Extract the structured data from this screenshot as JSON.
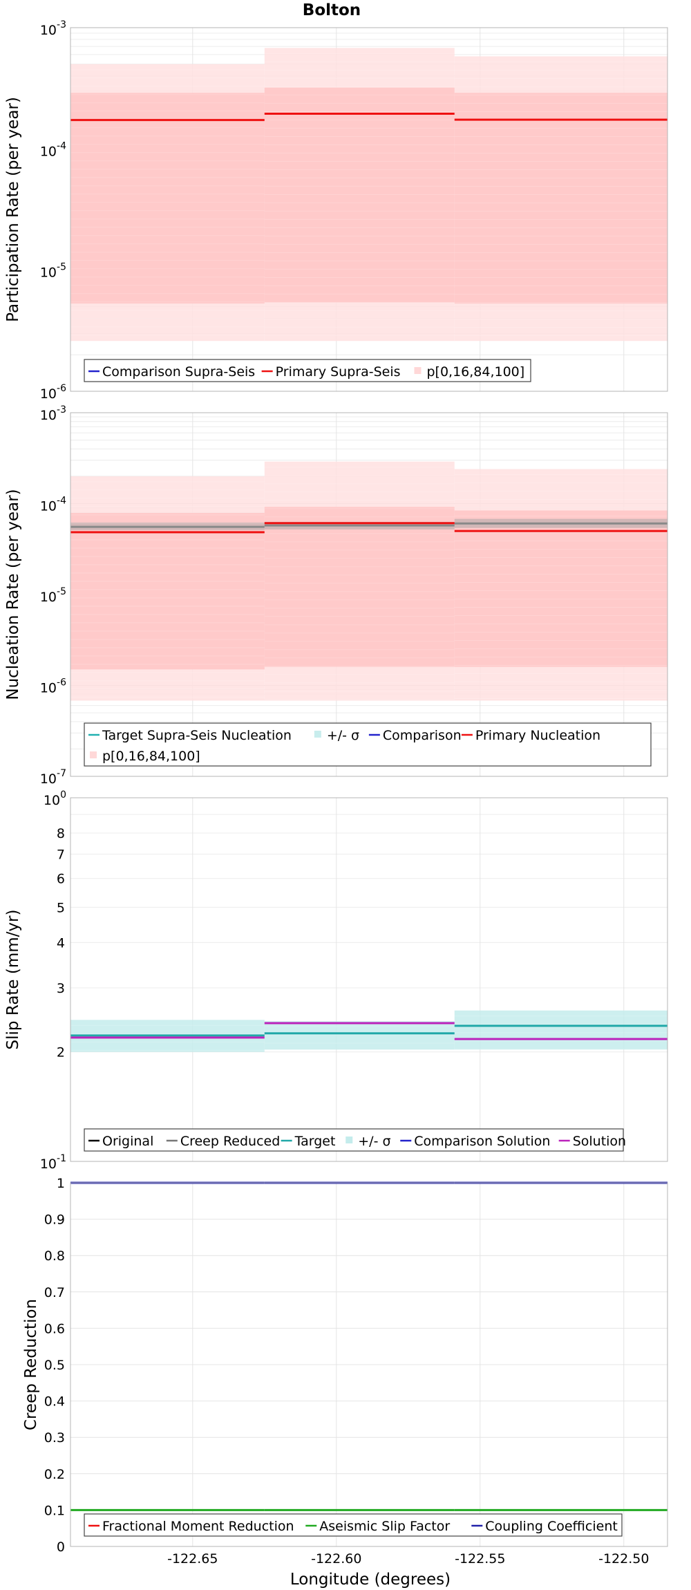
{
  "title": "Bolton",
  "xlabel": "Longitude (degrees)",
  "x_ticks": [
    -122.65,
    -122.6,
    -122.55,
    -122.5
  ],
  "x_tick_labels": [
    "-122.65",
    "-122.60",
    "-122.55",
    "-122.50"
  ],
  "xlim": [
    -122.6925,
    -122.4848
  ],
  "chart_data": [
    {
      "id": "participation",
      "type": "line",
      "title": "Bolton",
      "ylabel": "Participation Rate (per year)",
      "yscale": "log",
      "ylim_exp": [
        -6,
        -3
      ],
      "y_tick_exps": [
        -6,
        -5,
        -4,
        -3
      ],
      "segments": [
        -122.6925,
        -122.625,
        -122.5589,
        -122.4848
      ],
      "bands": [
        {
          "color": "#ffe0e0",
          "lower": [
            2.6e-06,
            2.6e-06,
            2.6e-06
          ],
          "upper": [
            0.0005,
            0.00068,
            0.00058
          ]
        },
        {
          "color": "#ffc6c6",
          "lower": [
            5.3e-06,
            5.4e-06,
            5.3e-06
          ],
          "upper": [
            0.00029,
            0.00032,
            0.00029
          ]
        }
      ],
      "series": [
        {
          "name": "Primary Supra-Seis",
          "color": "#ee1111",
          "values": [
            0.000173,
            0.000195,
            0.000174
          ]
        }
      ],
      "legend": [
        {
          "label": "Comparison Supra-Seis",
          "color": "#2222cc",
          "kind": "line"
        },
        {
          "label": "Primary Supra-Seis",
          "color": "#ee1111",
          "kind": "line"
        },
        {
          "label": "p[0,16,84,100]",
          "color": "#ffd8d8",
          "kind": "band"
        }
      ]
    },
    {
      "id": "nucleation",
      "type": "line",
      "ylabel": "Nucleation Rate (per year)",
      "yscale": "log",
      "ylim_exp": [
        -7,
        -3
      ],
      "y_tick_exps": [
        -7,
        -6,
        -5,
        -4,
        -3
      ],
      "segments": [
        -122.6925,
        -122.625,
        -122.5589,
        -122.4848
      ],
      "bands": [
        {
          "color": "#ffe0e0",
          "lower": [
            6.8e-07,
            6.8e-07,
            6.8e-07
          ],
          "upper": [
            0.0002,
            0.00029,
            0.00024
          ]
        },
        {
          "color": "#ffc6c6",
          "lower": [
            1.5e-06,
            1.6e-06,
            1.6e-06
          ],
          "upper": [
            7.9e-05,
            9.2e-05,
            8.4e-05
          ]
        },
        {
          "color": "#c9b4b4",
          "lower": [
            5.1e-05,
            5.2e-05,
            5.4e-05
          ],
          "upper": [
            6.2e-05,
            6.3e-05,
            6.8e-05
          ]
        }
      ],
      "series": [
        {
          "name": "Target Supra-Seis Nucleation",
          "color": "#888888",
          "values": [
            5.55e-05,
            5.75e-05,
            6.05e-05
          ]
        },
        {
          "name": "Primary Nucleation",
          "color": "#ee1111",
          "values": [
            4.85e-05,
            6.1e-05,
            5e-05
          ]
        }
      ],
      "legend": [
        {
          "label": "Target Supra-Seis Nucleation",
          "color": "#20b0b0",
          "kind": "line"
        },
        {
          "label": "+/- σ",
          "color": "#c8eded",
          "kind": "band"
        },
        {
          "label": "Comparison",
          "color": "#2222cc",
          "kind": "line"
        },
        {
          "label": "Primary Nucleation",
          "color": "#ee1111",
          "kind": "line"
        },
        {
          "label": "p[0,16,84,100]",
          "color": "#ffd8d8",
          "kind": "band"
        }
      ]
    },
    {
      "id": "slip",
      "type": "line",
      "ylabel": "Slip Rate (mm/yr)",
      "yscale": "log",
      "ylim_exp": [
        -1,
        0
      ],
      "y_tick_exps": [
        -1,
        0
      ],
      "y_minor_labels": [
        {
          "value": 0.2,
          "label": "2"
        },
        {
          "value": 0.3,
          "label": "3"
        },
        {
          "value": 0.4,
          "label": "4"
        },
        {
          "value": 0.5,
          "label": "5"
        },
        {
          "value": 0.6,
          "label": "6"
        },
        {
          "value": 0.7,
          "label": "7"
        },
        {
          "value": 0.8,
          "label": "8"
        }
      ],
      "segments": [
        -122.6925,
        -122.625,
        -122.5589,
        -122.4848
      ],
      "bands": [
        {
          "color": "#c4ecec",
          "lower": [
            0.2,
            0.203,
            0.203
          ],
          "upper": [
            0.245,
            0.243,
            0.26
          ]
        }
      ],
      "series": [
        {
          "name": "Target",
          "color": "#20a8a8",
          "values": [
            0.222,
            0.225,
            0.236
          ]
        },
        {
          "name": "Solution",
          "color": "#bb22bb",
          "values": [
            0.219,
            0.24,
            0.217
          ]
        }
      ],
      "legend": [
        {
          "label": "Original",
          "color": "#000000",
          "kind": "line"
        },
        {
          "label": "Creep Reduced",
          "color": "#777777",
          "kind": "line"
        },
        {
          "label": "Target",
          "color": "#20a8a8",
          "kind": "line"
        },
        {
          "label": "+/- σ",
          "color": "#c4ecec",
          "kind": "band"
        },
        {
          "label": "Comparison Solution",
          "color": "#2222cc",
          "kind": "line"
        },
        {
          "label": "Solution",
          "color": "#bb22bb",
          "kind": "line"
        }
      ]
    },
    {
      "id": "creep",
      "type": "line",
      "xlabel": "Longitude (degrees)",
      "ylabel": "Creep Reduction",
      "yscale": "linear",
      "ylim": [
        0,
        1
      ],
      "y_ticks": [
        0,
        0.1,
        0.2,
        0.3,
        0.4,
        0.5,
        0.6,
        0.7,
        0.8,
        0.9,
        1
      ],
      "y_tick_labels": [
        "0",
        "0.1",
        "0.2",
        "0.3",
        "0.4",
        "0.5",
        "0.6",
        "0.7",
        "0.8",
        "0.9",
        "1"
      ],
      "segments": [
        -122.6925,
        -122.625,
        -122.5589,
        -122.4848
      ],
      "bands": [],
      "series": [
        {
          "name": "Aseismic Slip Factor",
          "color": "#22aa22",
          "values": [
            0.1,
            0.1,
            0.1
          ]
        },
        {
          "name": "Coupling Coefficient",
          "color": "#2222aa",
          "values": [
            1,
            1,
            1
          ]
        }
      ],
      "legend": [
        {
          "label": "Fractional Moment Reduction",
          "color": "#ee1111",
          "kind": "line"
        },
        {
          "label": "Aseismic Slip Factor",
          "color": "#22aa22",
          "kind": "line"
        },
        {
          "label": "Coupling Coefficient",
          "color": "#2222aa",
          "kind": "line"
        }
      ]
    }
  ]
}
